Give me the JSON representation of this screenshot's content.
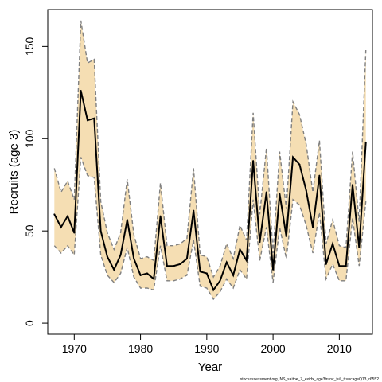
{
  "chart_data": {
    "type": "line",
    "title": "",
    "xlabel": "Year",
    "ylabel": "Recruits (age 3)",
    "xlim": [
      1966,
      2015
    ],
    "ylim": [
      -6,
      170
    ],
    "x_ticks": [
      1970,
      1980,
      1990,
      2000,
      2010
    ],
    "y_ticks": [
      0,
      50,
      100,
      150
    ],
    "grid": false,
    "legend": "none",
    "credit": "stockassessment.org, NS_saithe_7_exidx_age3trunc_full_truncageQ13, r6552",
    "colors": {
      "band": "#f5deb3",
      "line": "#000000",
      "bounds": "#808080"
    },
    "x": [
      1967,
      1968,
      1969,
      1970,
      1971,
      1972,
      1973,
      1974,
      1975,
      1976,
      1977,
      1978,
      1979,
      1980,
      1981,
      1982,
      1983,
      1984,
      1985,
      1986,
      1987,
      1988,
      1989,
      1990,
      1991,
      1992,
      1993,
      1994,
      1995,
      1996,
      1997,
      1998,
      1999,
      2000,
      2001,
      2002,
      2003,
      2004,
      2005,
      2006,
      2007,
      2008,
      2009,
      2010,
      2011,
      2012,
      2013,
      2014
    ],
    "series": [
      {
        "role": "estimate",
        "values": [
          59,
          52,
          58,
          49,
          126,
          110,
          111,
          50,
          36,
          29,
          37,
          56,
          35,
          26,
          27,
          24,
          58,
          31,
          31,
          32,
          35,
          61,
          28,
          27,
          18,
          23,
          33,
          26,
          40,
          34,
          88,
          44,
          71,
          29,
          70,
          47,
          90,
          86,
          72,
          52,
          80,
          32,
          43,
          31,
          31,
          75,
          41,
          98
        ]
      },
      {
        "role": "upper",
        "values": [
          84,
          71,
          77,
          67,
          164,
          141,
          143,
          66,
          49,
          40,
          49,
          78,
          48,
          35,
          36,
          34,
          76,
          42,
          42,
          43,
          46,
          84,
          37,
          36,
          25,
          31,
          43,
          35,
          53,
          45,
          114,
          59,
          95,
          38,
          93,
          62,
          120,
          113,
          97,
          71,
          99,
          43,
          56,
          42,
          41,
          93,
          55,
          148
        ]
      },
      {
        "role": "lower",
        "values": [
          42,
          38,
          42,
          37,
          90,
          80,
          79,
          37,
          26,
          22,
          27,
          41,
          25,
          19,
          19,
          18,
          42,
          23,
          23,
          24,
          26,
          45,
          20,
          19,
          13,
          17,
          24,
          19,
          29,
          24,
          67,
          34,
          52,
          22,
          52,
          35,
          67,
          64,
          53,
          38,
          60,
          24,
          32,
          23,
          23,
          57,
          31,
          66
        ]
      }
    ]
  }
}
